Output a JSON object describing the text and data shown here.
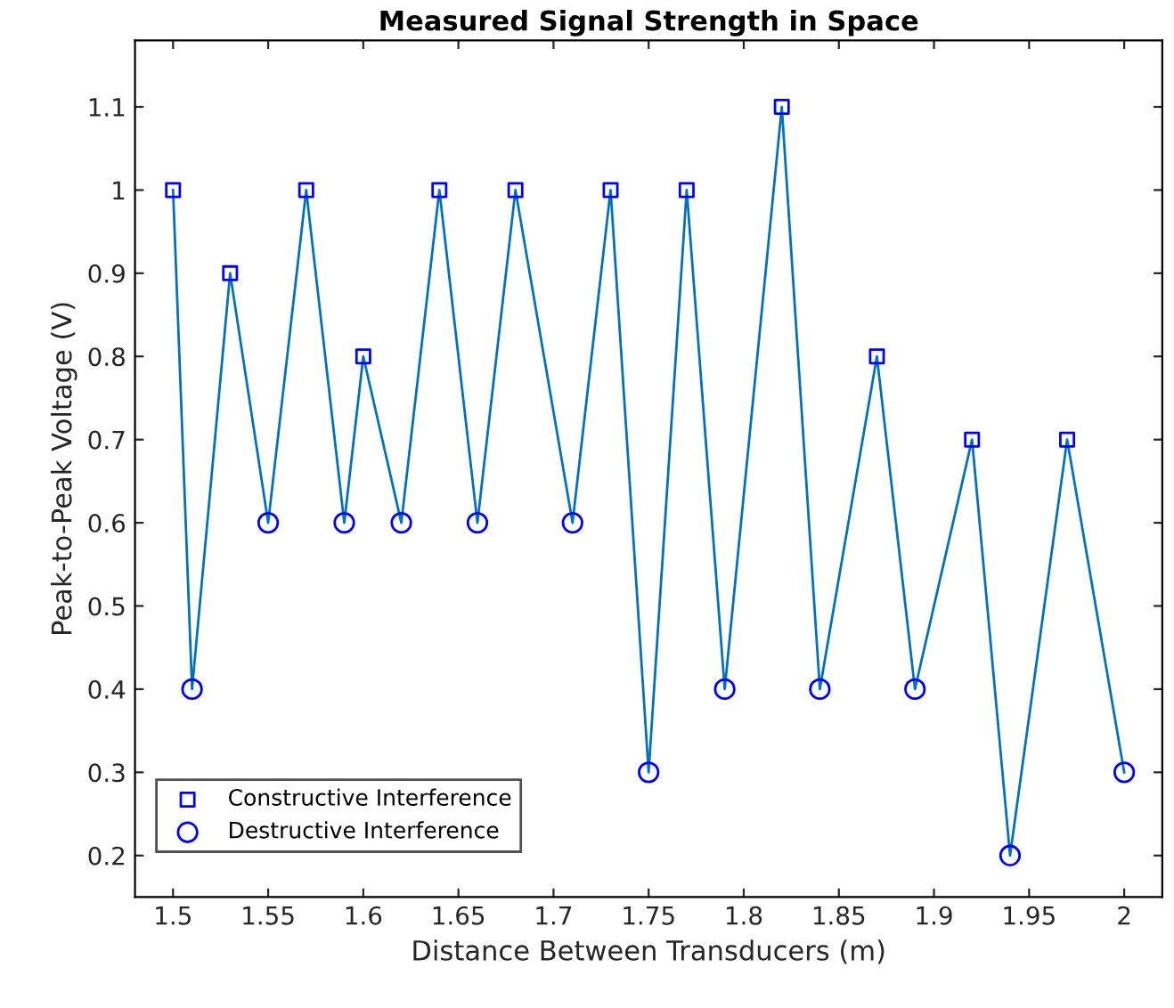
{
  "chart_data": {
    "type": "line",
    "title": "Measured Signal Strength in Space",
    "xlabel": "Distance Between Transducers (m)",
    "ylabel": "Peak-to-Peak Voltage (V)",
    "xlim": [
      1.48,
      2.02
    ],
    "xticks": [
      {
        "value": 1.5,
        "label": "1.5"
      },
      {
        "value": 1.55,
        "label": "1.55"
      },
      {
        "value": 1.6,
        "label": "1.6"
      },
      {
        "value": 1.65,
        "label": "1.65"
      },
      {
        "value": 1.7,
        "label": "1.7"
      },
      {
        "value": 1.75,
        "label": "1.75"
      },
      {
        "value": 1.8,
        "label": "1.8"
      },
      {
        "value": 1.85,
        "label": "1.85"
      },
      {
        "value": 1.9,
        "label": "1.9"
      },
      {
        "value": 1.95,
        "label": "1.95"
      },
      {
        "value": 2,
        "label": "2"
      }
    ],
    "ylim": [
      0.15,
      1.18
    ],
    "yticks": [
      0.2,
      0.3,
      0.4,
      0.5,
      0.6,
      0.7,
      0.8,
      0.9,
      {
        "value": 1,
        "label": "1"
      },
      1.1
    ],
    "grid": false,
    "legend": "bottom left",
    "series": [
      {
        "color": "#0072bd",
        "marker": "none",
        "x": [
          1.5,
          1.51,
          1.53,
          1.55,
          1.57,
          1.59,
          1.6,
          1.62,
          1.64,
          1.66,
          1.68,
          1.71,
          1.73,
          1.75,
          1.77,
          1.79,
          1.82,
          1.84,
          1.87,
          1.89,
          1.92,
          1.94,
          1.97,
          2.0
        ],
        "values": [
          1.0,
          0.4,
          0.9,
          0.6,
          1.0,
          0.6,
          0.8,
          0.6,
          1.0,
          0.6,
          1.0,
          0.6,
          1.0,
          0.3,
          1.0,
          0.4,
          1.1,
          0.4,
          0.8,
          0.4,
          0.7,
          0.2,
          0.7,
          0.3
        ]
      },
      {
        "type": "scatter",
        "name": "Constructive Interference",
        "color": "#0000ff",
        "marker": "square",
        "x": [
          1.5,
          1.53,
          1.57,
          1.6,
          1.64,
          1.68,
          1.73,
          1.77,
          1.82,
          1.87,
          1.92,
          1.97
        ],
        "values": [
          1.0,
          0.9,
          1.0,
          0.8,
          1.0,
          1.0,
          1.0,
          1.0,
          1.1,
          0.8,
          0.7,
          0.7
        ]
      },
      {
        "type": "scatter",
        "name": "Destructive Interference",
        "color": "#0000ff",
        "marker": "circle",
        "x": [
          1.51,
          1.55,
          1.59,
          1.62,
          1.66,
          1.71,
          1.75,
          1.79,
          1.84,
          1.89,
          1.94,
          2.0
        ],
        "values": [
          0.4,
          0.6,
          0.6,
          0.6,
          0.6,
          0.6,
          0.3,
          0.4,
          0.4,
          0.4,
          0.2,
          0.3
        ]
      }
    ]
  }
}
